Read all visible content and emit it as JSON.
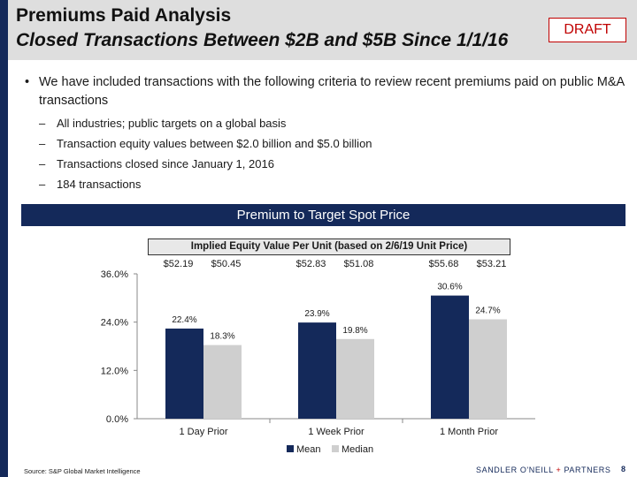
{
  "header": {
    "title_line1": "Premiums Paid Analysis",
    "title_line2": "Closed Transactions Between $2B and $5B Since 1/1/16",
    "draft_label": "DRAFT"
  },
  "bullets": {
    "main": "We have included transactions with the following criteria to review recent premiums paid on public M&A transactions",
    "subs": [
      "All industries; public targets on a global basis",
      "Transaction equity values between $2.0 billion and $5.0 billion",
      "Transactions closed since January 1, 2016",
      "184 transactions"
    ]
  },
  "banner": "Premium to Target Spot Price",
  "implied_header": "Implied Equity Value Per Unit (based on 2/6/19 Unit Price)",
  "implied_values": [
    [
      "$52.19",
      "$50.45"
    ],
    [
      "$52.83",
      "$51.08"
    ],
    [
      "$55.68",
      "$53.21"
    ]
  ],
  "chart_data": {
    "type": "bar",
    "categories": [
      "1 Day Prior",
      "1 Week Prior",
      "1 Month Prior"
    ],
    "series": [
      {
        "name": "Mean",
        "values": [
          22.4,
          23.9,
          30.6
        ],
        "labels": [
          "22.4%",
          "23.9%",
          "30.6%"
        ],
        "color": "#14295a"
      },
      {
        "name": "Median",
        "values": [
          18.3,
          19.8,
          24.7
        ],
        "labels": [
          "18.3%",
          "19.8%",
          "24.7%"
        ],
        "color": "#cfcfcf"
      }
    ],
    "ylim": [
      0,
      36
    ],
    "yticks": [
      0,
      12,
      24,
      36
    ],
    "ytick_labels": [
      "0.0%",
      "12.0%",
      "24.0%",
      "36.0%"
    ],
    "grid": false,
    "legend": "bottom"
  },
  "footer": {
    "source": "Source: S&P Global Market Intelligence",
    "logo_left": "SANDLER O'NEILL",
    "logo_plus": "+",
    "logo_right": "PARTNERS",
    "page": "8"
  }
}
